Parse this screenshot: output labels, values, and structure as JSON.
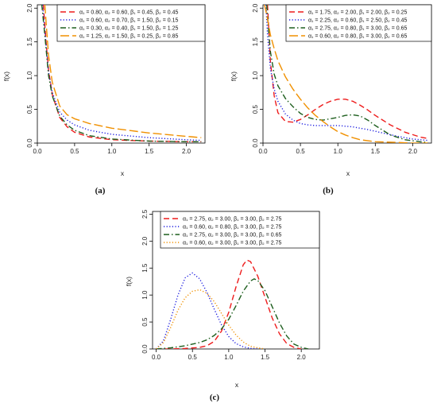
{
  "colors": {
    "red": "#ee1c1c",
    "blue": "#1a1adf",
    "green": "#1d5e1d",
    "orange": "#f09000"
  },
  "chart_data": [
    {
      "type": "line",
      "caption": "(a)",
      "xlabel": "x",
      "ylabel": "f(x)",
      "xlim": [
        0,
        2.25
      ],
      "ylim": [
        0,
        2.05
      ],
      "xticks": [
        "0.0",
        "0.5",
        "1.0",
        "1.5",
        "2.0"
      ],
      "yticks": [
        "0.0",
        "0.5",
        "1.0",
        "1.5",
        "2.0"
      ],
      "legend": "top-right",
      "series": [
        {
          "name": "α₁ = 0.80,  α₂ = 0.60, β₁ = 0.45, β₂ = 0.45",
          "color": "red",
          "dash": "dashed",
          "x": [
            0.08,
            0.1,
            0.12,
            0.15,
            0.2,
            0.3,
            0.4,
            0.5,
            0.7,
            1.0,
            1.5,
            2.0,
            2.2
          ],
          "y": [
            2.05,
            1.75,
            1.45,
            1.08,
            0.72,
            0.38,
            0.24,
            0.16,
            0.09,
            0.05,
            0.03,
            0.02,
            0.02
          ]
        },
        {
          "name": "α₁ = 0.60,  α₂ = 0.70, β₁ = 1.50, β₂ = 0.15",
          "color": "blue",
          "dash": "dotted",
          "x": [
            0.07,
            0.1,
            0.15,
            0.2,
            0.3,
            0.4,
            0.5,
            0.7,
            1.0,
            1.5,
            2.0,
            2.2
          ],
          "y": [
            2.05,
            1.65,
            1.05,
            0.75,
            0.46,
            0.34,
            0.27,
            0.19,
            0.13,
            0.08,
            0.05,
            0.04
          ]
        },
        {
          "name": "α₁ = 0.30,  α₂ = 0.40, β₁ = 1.50, β₂ = 1.25",
          "color": "green",
          "dash": "dashdot",
          "x": [
            0.06,
            0.1,
            0.15,
            0.2,
            0.3,
            0.4,
            0.5,
            0.7,
            1.0,
            1.5,
            2.0,
            2.2
          ],
          "y": [
            2.05,
            1.6,
            1.0,
            0.7,
            0.4,
            0.27,
            0.19,
            0.11,
            0.06,
            0.03,
            0.02,
            0.02
          ]
        },
        {
          "name": "α₁ = 1.25,  α₂ = 1.50, β₁ = 0.25, β₂ = 0.85",
          "color": "orange",
          "dash": "longdash",
          "x": [
            0.1,
            0.15,
            0.2,
            0.3,
            0.4,
            0.5,
            0.7,
            1.0,
            1.5,
            2.0,
            2.2
          ],
          "y": [
            2.05,
            1.3,
            0.9,
            0.55,
            0.42,
            0.36,
            0.29,
            0.22,
            0.15,
            0.1,
            0.08
          ]
        }
      ]
    },
    {
      "type": "line",
      "caption": "(b)",
      "xlabel": "x",
      "ylabel": "f(x)",
      "xlim": [
        0,
        2.25
      ],
      "ylim": [
        0,
        2.05
      ],
      "xticks": [
        "0.0",
        "0.5",
        "1.0",
        "1.5",
        "2.0"
      ],
      "yticks": [
        "0.0",
        "0.5",
        "1.0",
        "1.5",
        "2.0"
      ],
      "legend": "top-right",
      "series": [
        {
          "name": "α₁ = 1.75,  α₂ = 2.00, β₁ = 2.00, β₂ = 0.25",
          "color": "red",
          "dash": "dashed",
          "x": [
            0.06,
            0.1,
            0.15,
            0.2,
            0.3,
            0.4,
            0.5,
            0.6,
            0.7,
            0.8,
            0.9,
            1.0,
            1.1,
            1.2,
            1.3,
            1.4,
            1.5,
            1.7,
            1.9,
            2.1,
            2.2
          ],
          "y": [
            2.05,
            1.2,
            0.7,
            0.45,
            0.32,
            0.31,
            0.35,
            0.42,
            0.5,
            0.57,
            0.62,
            0.65,
            0.65,
            0.62,
            0.56,
            0.49,
            0.41,
            0.27,
            0.16,
            0.09,
            0.07
          ]
        },
        {
          "name": "α₁ = 2.25,  α₂ = 0.60, β₁ = 2.50, β₂ = 0.45",
          "color": "blue",
          "dash": "dotted",
          "x": [
            0.04,
            0.06,
            0.1,
            0.15,
            0.2,
            0.3,
            0.4,
            0.5,
            0.6,
            0.7,
            0.8,
            1.0,
            1.2,
            1.4,
            1.6,
            1.8,
            2.0,
            2.2
          ],
          "y": [
            2.05,
            1.6,
            1.1,
            0.8,
            0.62,
            0.43,
            0.34,
            0.29,
            0.27,
            0.26,
            0.26,
            0.26,
            0.24,
            0.2,
            0.15,
            0.1,
            0.06,
            0.04
          ]
        },
        {
          "name": "α₁ = 2.75,  α₂ = 0.80, β₁ = 3.00, β₂ = 0.65",
          "color": "green",
          "dash": "dashdot",
          "x": [
            0.05,
            0.08,
            0.1,
            0.15,
            0.2,
            0.3,
            0.4,
            0.5,
            0.6,
            0.7,
            0.8,
            0.9,
            1.0,
            1.1,
            1.2,
            1.3,
            1.4,
            1.5,
            1.7,
            1.9,
            2.1,
            2.2
          ],
          "y": [
            2.05,
            1.6,
            1.35,
            1.02,
            0.85,
            0.66,
            0.54,
            0.44,
            0.38,
            0.35,
            0.34,
            0.36,
            0.38,
            0.41,
            0.42,
            0.4,
            0.34,
            0.26,
            0.12,
            0.05,
            0.02,
            0.01
          ]
        },
        {
          "name": "α₁ = 0.60,  α₂ = 0.80, β₁ = 3.00, β₂ = 0.65",
          "color": "orange",
          "dash": "longdash",
          "x": [
            0.02,
            0.05,
            0.1,
            0.15,
            0.2,
            0.3,
            0.4,
            0.5,
            0.6,
            0.7,
            0.8,
            0.9,
            1.0,
            1.1,
            1.2,
            1.3,
            1.5,
            1.8,
            2.0,
            2.2
          ],
          "y": [
            2.05,
            1.9,
            1.6,
            1.4,
            1.22,
            0.98,
            0.8,
            0.65,
            0.52,
            0.41,
            0.32,
            0.24,
            0.17,
            0.12,
            0.08,
            0.05,
            0.02,
            0.01,
            0.0,
            0.0
          ]
        }
      ]
    },
    {
      "type": "line",
      "caption": "(c)",
      "xlabel": "x",
      "ylabel": "f(x)",
      "xlim": [
        -0.05,
        2.25
      ],
      "ylim": [
        0,
        2.55
      ],
      "xticks": [
        "0.0",
        "0.5",
        "1.0",
        "1.5",
        "2.0"
      ],
      "yticks": [
        "0.0",
        "0.5",
        "1.0",
        "1.5",
        "2.0",
        "2.5"
      ],
      "legend": "top-right",
      "series": [
        {
          "name": "α₁ = 2.75,  α₂ = 3.00, β₁ = 3.00, β₂ = 2.75",
          "color": "red",
          "dash": "dashed",
          "x": [
            0.0,
            0.2,
            0.4,
            0.6,
            0.7,
            0.8,
            0.9,
            1.0,
            1.1,
            1.2,
            1.25,
            1.3,
            1.4,
            1.5,
            1.6,
            1.7,
            1.8,
            1.9,
            2.0
          ],
          "y": [
            0.0,
            0.0,
            0.01,
            0.03,
            0.06,
            0.14,
            0.33,
            0.68,
            1.15,
            1.56,
            1.65,
            1.62,
            1.35,
            0.96,
            0.57,
            0.28,
            0.1,
            0.03,
            0.0
          ]
        },
        {
          "name": "α₁ = 0.60,  α₂ = 0.80, β₁ = 3.00, β₂ = 2.75",
          "color": "blue",
          "dash": "dotted",
          "x": [
            0.0,
            0.1,
            0.2,
            0.3,
            0.4,
            0.5,
            0.6,
            0.7,
            0.8,
            0.9,
            1.0,
            1.1,
            1.2,
            1.3,
            1.4
          ],
          "y": [
            0.0,
            0.15,
            0.55,
            1.0,
            1.32,
            1.41,
            1.3,
            1.05,
            0.74,
            0.45,
            0.23,
            0.1,
            0.04,
            0.01,
            0.0
          ]
        },
        {
          "name": "α₁ = 2.75,  α₂ = 3.00, β₁ = 3.00, β₂ = 0.65",
          "color": "green",
          "dash": "dashdot",
          "x": [
            0.0,
            0.2,
            0.4,
            0.6,
            0.7,
            0.8,
            0.9,
            1.0,
            1.1,
            1.2,
            1.3,
            1.35,
            1.4,
            1.5,
            1.6,
            1.7,
            1.8,
            1.9,
            2.0,
            2.1
          ],
          "y": [
            0.0,
            0.02,
            0.06,
            0.12,
            0.17,
            0.25,
            0.37,
            0.55,
            0.8,
            1.07,
            1.26,
            1.3,
            1.27,
            1.08,
            0.78,
            0.48,
            0.24,
            0.09,
            0.03,
            0.0
          ]
        },
        {
          "name": "α₁ = 0.60,  α₂ = 3.00, β₁ = 3.00, β₂ = 2.75",
          "color": "orange",
          "dash": "dotted",
          "x": [
            0.0,
            0.1,
            0.2,
            0.3,
            0.4,
            0.5,
            0.6,
            0.7,
            0.8,
            0.9,
            1.0,
            1.1,
            1.2,
            1.3,
            1.4,
            1.5
          ],
          "y": [
            0.0,
            0.12,
            0.4,
            0.72,
            0.95,
            1.07,
            1.1,
            1.03,
            0.88,
            0.66,
            0.44,
            0.26,
            0.13,
            0.05,
            0.02,
            0.0
          ]
        }
      ]
    }
  ]
}
